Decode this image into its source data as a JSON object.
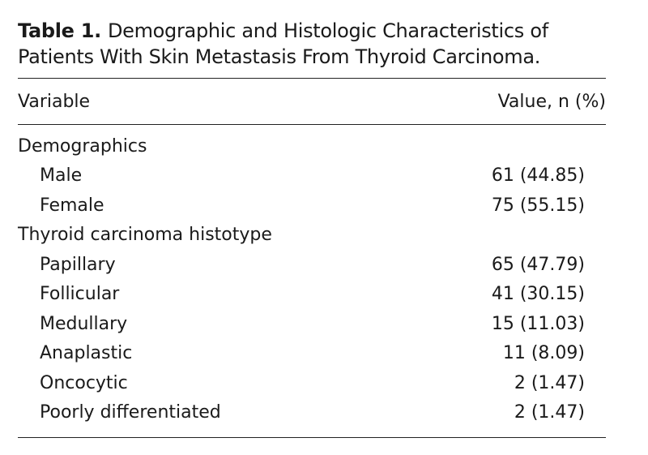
{
  "title": {
    "label": "Table 1.",
    "text": "Demographic and Histologic Characteristics of Patients With Skin Metastasis From Thyroid Carcinoma."
  },
  "table": {
    "header": [
      "Variable",
      "Value, n (%)"
    ],
    "rows": [
      [
        "Demographics",
        null
      ],
      [
        "Male",
        "61 (44.85)"
      ],
      [
        "Female",
        "75 (55.15)"
      ],
      [
        "Thyroid carcinoma histotype",
        null
      ],
      [
        "Papillary",
        "65 (47.79)"
      ],
      [
        "Follicular",
        "41 (30.15)"
      ],
      [
        "Medullary",
        "15 (11.03)"
      ],
      [
        "Anaplastic",
        "11 (8.09)"
      ],
      [
        "Oncocytic",
        "2 (1.47)"
      ],
      [
        "Poorly differentiated",
        "2 (1.47)"
      ]
    ]
  }
}
